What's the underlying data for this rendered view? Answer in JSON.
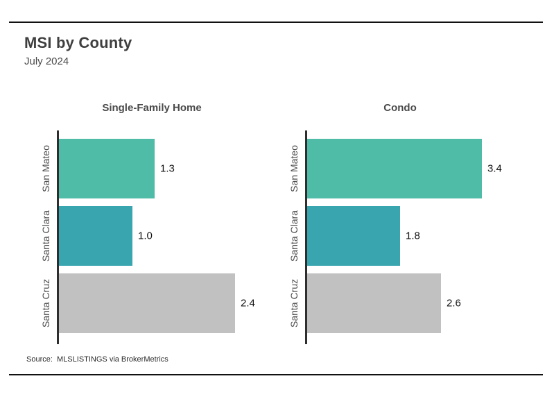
{
  "header": {
    "title": "MSI by County",
    "subtitle": "July 2024"
  },
  "footer": {
    "source": "Source:  MLSLISTINGS via BrokerMetrics"
  },
  "colors": {
    "bar_green": "#4fbca8",
    "bar_teal": "#39a5af",
    "bar_gray": "#c1c1c1",
    "axis": "#2e2e2e",
    "divider": "#111111",
    "title_text": "#3f3f3f",
    "label_text": "#4a4a4a",
    "value_text": "#141414"
  },
  "chart_data": [
    {
      "type": "bar",
      "orientation": "horizontal",
      "title": "Single-Family Home",
      "categories": [
        "San Mateo",
        "Santa Clara",
        "Santa Cruz"
      ],
      "values": [
        1.3,
        1.0,
        2.4
      ],
      "value_labels": [
        "1.3",
        "1.0",
        "2.4"
      ],
      "bar_colors": [
        "#4fbca8",
        "#39a5af",
        "#c1c1c1"
      ],
      "xlim": [
        0,
        2.9
      ],
      "xlabel": "",
      "ylabel": "",
      "grid": false,
      "legend": "none",
      "value_label_position": "outside-end"
    },
    {
      "type": "bar",
      "orientation": "horizontal",
      "title": "Condo",
      "categories": [
        "San Mateo",
        "Santa Clara",
        "Santa Cruz"
      ],
      "values": [
        3.4,
        1.8,
        2.6
      ],
      "value_labels": [
        "3.4",
        "1.8",
        "2.6"
      ],
      "bar_colors": [
        "#4fbca8",
        "#39a5af",
        "#c1c1c1"
      ],
      "xlim": [
        0,
        4.7
      ],
      "xlabel": "",
      "ylabel": "",
      "grid": false,
      "legend": "none",
      "value_label_position": "outside-end"
    }
  ]
}
